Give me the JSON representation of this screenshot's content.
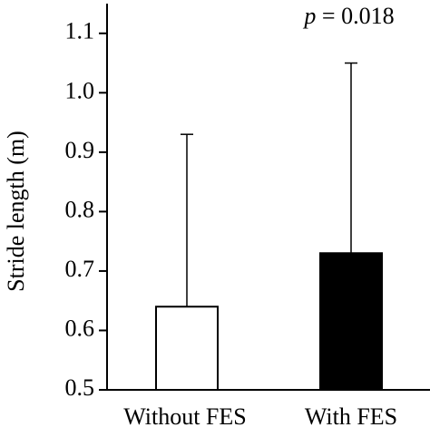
{
  "chart_data": {
    "type": "bar",
    "y_label": "Stride length (m)",
    "annotation": "p = 0.018",
    "categories": [
      "Without FES",
      "With FES"
    ],
    "values": [
      0.64,
      0.73
    ],
    "errors": [
      0.29,
      0.32
    ],
    "colors": [
      "#ffffff",
      "#000000"
    ],
    "ylim": [
      0.5,
      1.15
    ],
    "yticks": [
      0.5,
      0.6,
      0.7,
      0.8,
      0.9,
      {
        "value": 1,
        "label": "1.0"
      },
      1.1
    ]
  }
}
